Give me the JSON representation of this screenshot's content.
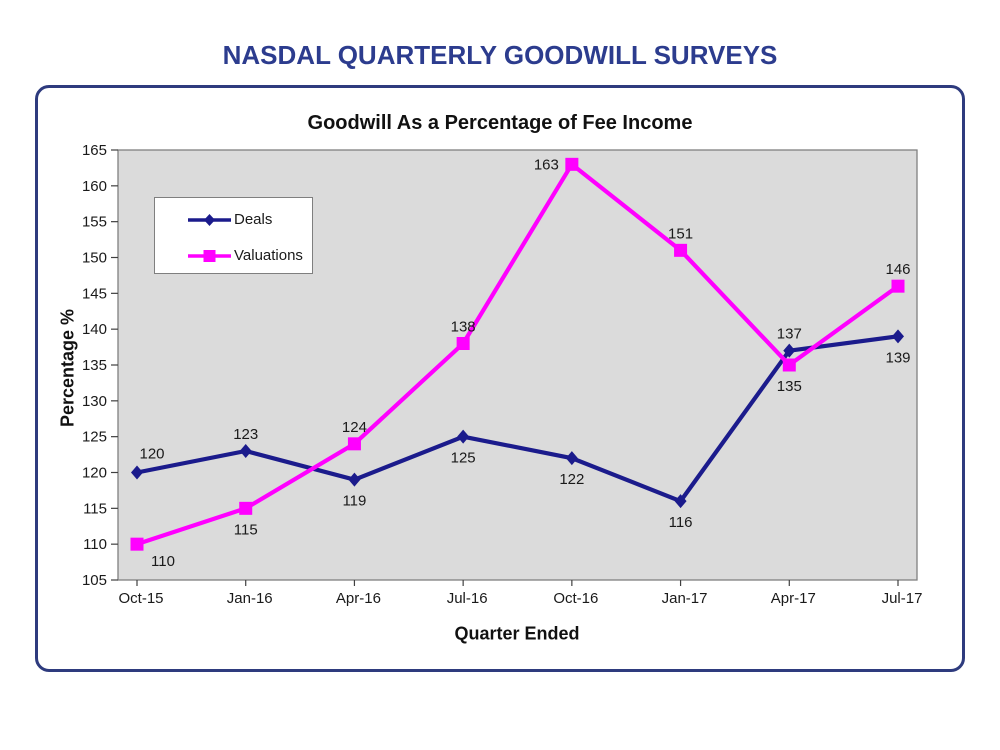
{
  "header": {
    "title": "NASDAL QUARTERLY GOODWILL SURVEYS"
  },
  "chart_data": {
    "type": "line",
    "title": "Goodwill As a Percentage of Fee Income",
    "xlabel": "Quarter Ended",
    "ylabel": "Percentage %",
    "categories": [
      "Oct-15",
      "Jan-16",
      "Apr-16",
      "Jul-16",
      "Oct-16",
      "Jan-17",
      "Apr-17",
      "Jul-17"
    ],
    "ylim": [
      105,
      165
    ],
    "ytick_step": 5,
    "grid": false,
    "plot_bg": "#DBDBDB",
    "legend_position": "upper-left-inside",
    "series": [
      {
        "name": "Deals",
        "color": "#1B1B8C",
        "marker": "diamond",
        "values": [
          120,
          123,
          119,
          125,
          122,
          116,
          137,
          139
        ],
        "label_positions": [
          "above-right",
          "above",
          "below",
          "below",
          "below",
          "below",
          "above",
          "below"
        ]
      },
      {
        "name": "Valuations",
        "color": "#FF00FF",
        "marker": "square",
        "values": [
          110,
          115,
          124,
          138,
          163,
          151,
          135,
          146
        ],
        "label_positions": [
          "below-right",
          "below",
          "above",
          "above",
          "left",
          "above",
          "below",
          "above"
        ]
      }
    ]
  },
  "colors": {
    "header_text": "#2C3C8E",
    "box_border": "#2E3B7E",
    "plot_border": "#808080",
    "tick": "#404040",
    "label_text": "#1a1a1a",
    "legend_border": "#7F7F7F"
  }
}
